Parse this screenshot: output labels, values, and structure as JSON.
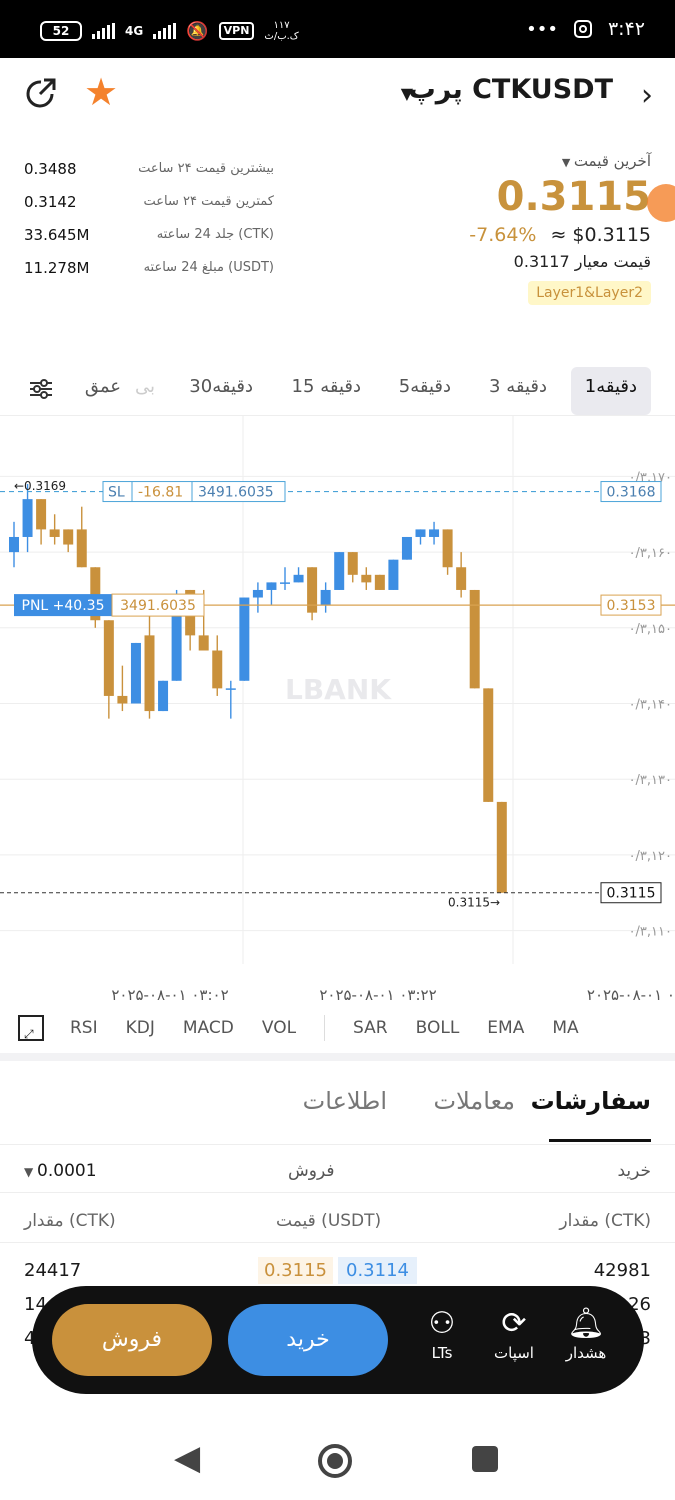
{
  "status_bar": {
    "battery": "52",
    "network": "4G",
    "vpn": "VPN",
    "data_rate_top": "۱۱۷",
    "data_rate_bottom": "ک.ب/ث",
    "dots": "•••",
    "time": "۳:۴۲"
  },
  "header": {
    "title": "پرپ CTKUSDT",
    "back_icon": "chevron-right-icon",
    "star_icon": "star-icon",
    "share_icon": "share-icon"
  },
  "stats": {
    "high_label": "بیشترین قیمت ۲۴ ساعت",
    "high_value": "0.3488",
    "low_label": "کمترین قیمت ۲۴ ساعت",
    "low_value": "0.3142",
    "vol_label": "جلد 24 ساعته (CTK)",
    "vol_value": "33.645M",
    "amount_label": "مبلغ 24 ساعته (USDT)",
    "amount_value": "11.278M"
  },
  "last_price": {
    "label": "آخرین قیمت",
    "value": "0.3115",
    "change": "-7.64%",
    "usd": "≈ $0.3115",
    "mark_label": "قیمت معیار",
    "mark_value": "0.3117",
    "tag": "Layer1&Layer2"
  },
  "timeframes": {
    "tf1": "1دقیقه",
    "tf3": "3 دقیقه",
    "tf5": "5دقیقه",
    "tf15": "15 دقیقه",
    "tf30": "30دقیقه",
    "faded": "بی",
    "depth": "عمق"
  },
  "chart_data": {
    "type": "candlestick",
    "symbol": "CTKUSDT",
    "watermark": "LBANK",
    "y_ticks": [
      "۰/۳,۱۷۰",
      "۰/۳,۱۶۰",
      "۰/۳,۱۵۰",
      "۰/۳,۱۴۰",
      "۰/۳,۱۳۰",
      "۰/۳,۱۲۰",
      "۰/۳,۱۱۰"
    ],
    "y_tick_values": [
      0.317,
      0.316,
      0.315,
      0.314,
      0.313,
      0.312,
      0.311
    ],
    "ylim": [
      0.3104,
      0.3176
    ],
    "x_ticks": [
      "۲۰۲۵-۰۸-۰۱ ۰۳:۰۲",
      "۲۰۲۵-۰۸-۰۱ ۰۳:۲۲",
      "۲۰۲۵-۰۸-۰۱ ۰"
    ],
    "high_marker": "0.3169",
    "low_marker": "0.3115→",
    "sl": {
      "label": "SL",
      "pnl": "-16.81",
      "qty": "3491.6035",
      "price": "0.3168",
      "value": 0.3168
    },
    "pnl": {
      "label": "PNL +40.35",
      "qty": "3491.6035",
      "price": "0.3153",
      "value": 0.3153
    },
    "last": {
      "price": "0.3115",
      "value": 0.3115
    },
    "up_color": "#3d8ee3",
    "down_color": "#c9913c",
    "candles": [
      {
        "o": 0.316,
        "h": 0.3164,
        "c": 0.3162,
        "l": 0.3158
      },
      {
        "o": 0.3162,
        "h": 0.3169,
        "c": 0.3167,
        "l": 0.316
      },
      {
        "o": 0.3167,
        "h": 0.3167,
        "c": 0.3163,
        "l": 0.3161
      },
      {
        "o": 0.3163,
        "h": 0.3165,
        "c": 0.3162,
        "l": 0.3161
      },
      {
        "o": 0.3163,
        "h": 0.3163,
        "c": 0.3161,
        "l": 0.316
      },
      {
        "o": 0.3163,
        "h": 0.3166,
        "c": 0.3158,
        "l": 0.3158
      },
      {
        "o": 0.3158,
        "h": 0.3158,
        "c": 0.3151,
        "l": 0.315
      },
      {
        "o": 0.3151,
        "h": 0.3151,
        "c": 0.3141,
        "l": 0.3138
      },
      {
        "o": 0.3141,
        "h": 0.3145,
        "c": 0.314,
        "l": 0.3139
      },
      {
        "o": 0.314,
        "h": 0.3148,
        "c": 0.3148,
        "l": 0.314
      },
      {
        "o": 0.3149,
        "h": 0.3154,
        "c": 0.3139,
        "l": 0.3138
      },
      {
        "o": 0.3139,
        "h": 0.3143,
        "c": 0.3143,
        "l": 0.3139
      },
      {
        "o": 0.3143,
        "h": 0.3155,
        "c": 0.3153,
        "l": 0.3143
      },
      {
        "o": 0.3155,
        "h": 0.3155,
        "c": 0.3149,
        "l": 0.3147
      },
      {
        "o": 0.3149,
        "h": 0.3155,
        "c": 0.3147,
        "l": 0.3147
      },
      {
        "o": 0.3147,
        "h": 0.3149,
        "c": 0.3142,
        "l": 0.3141
      },
      {
        "o": 0.3142,
        "h": 0.3143,
        "c": 0.3142,
        "l": 0.3138
      },
      {
        "o": 0.3143,
        "h": 0.3154,
        "c": 0.3154,
        "l": 0.3143
      },
      {
        "o": 0.3154,
        "h": 0.3156,
        "c": 0.3155,
        "l": 0.3152
      },
      {
        "o": 0.3155,
        "h": 0.3156,
        "c": 0.3156,
        "l": 0.3153
      },
      {
        "o": 0.3156,
        "h": 0.3158,
        "c": 0.3156,
        "l": 0.3155
      },
      {
        "o": 0.3156,
        "h": 0.3158,
        "c": 0.3157,
        "l": 0.3156
      },
      {
        "o": 0.3158,
        "h": 0.3158,
        "c": 0.3152,
        "l": 0.3151
      },
      {
        "o": 0.3153,
        "h": 0.3156,
        "c": 0.3155,
        "l": 0.3152
      },
      {
        "o": 0.3155,
        "h": 0.316,
        "c": 0.316,
        "l": 0.3155
      },
      {
        "o": 0.316,
        "h": 0.316,
        "c": 0.3157,
        "l": 0.3156
      },
      {
        "o": 0.3157,
        "h": 0.3158,
        "c": 0.3156,
        "l": 0.3155
      },
      {
        "o": 0.3157,
        "h": 0.3157,
        "c": 0.3155,
        "l": 0.3155
      },
      {
        "o": 0.3155,
        "h": 0.3159,
        "c": 0.3159,
        "l": 0.3155
      },
      {
        "o": 0.3159,
        "h": 0.3162,
        "c": 0.3162,
        "l": 0.3159
      },
      {
        "o": 0.3162,
        "h": 0.3163,
        "c": 0.3163,
        "l": 0.3161
      },
      {
        "o": 0.3162,
        "h": 0.3164,
        "c": 0.3163,
        "l": 0.3161
      },
      {
        "o": 0.3163,
        "h": 0.3163,
        "c": 0.3158,
        "l": 0.3157
      },
      {
        "o": 0.3158,
        "h": 0.316,
        "c": 0.3155,
        "l": 0.3154
      },
      {
        "o": 0.3155,
        "h": 0.3155,
        "c": 0.3142,
        "l": 0.3142
      },
      {
        "o": 0.3142,
        "h": 0.3142,
        "c": 0.3127,
        "l": 0.3127
      },
      {
        "o": 0.3127,
        "h": 0.3127,
        "c": 0.3115,
        "l": 0.3115
      }
    ]
  },
  "indicators": {
    "expand_icon": "expand-icon",
    "rsi": "RSI",
    "kdj": "KDJ",
    "macd": "MACD",
    "vol": "VOL",
    "sar": "SAR",
    "boll": "BOLL",
    "ema": "EMA",
    "ma": "MA"
  },
  "book_tabs": {
    "orders": "سفارشات",
    "trades": "معاملات",
    "info": "اطلاعات"
  },
  "book": {
    "buy": "خرید",
    "sell": "فروش",
    "precision": "0.0001",
    "col_qty_right": "مقدار (CTK)",
    "col_price": "قیمت (USDT)",
    "col_qty_left": "مقدار (CTK)",
    "row1_left": "24417",
    "row1_ask": "0.3115",
    "row1_bid": "0.3114",
    "row1_right": "42981",
    "row2_left": "14",
    "row2_right": "26",
    "row3_left": "4",
    "row3_right": "3"
  },
  "bottom_bar": {
    "sell": "فروش",
    "buy": "خرید",
    "lts": "LTs",
    "spot": "اسپات",
    "alert": "هشدار"
  },
  "nav": {
    "back_icon": "back-triangle-icon",
    "home_icon": "home-circle-icon",
    "recent_icon": "recent-square-icon"
  }
}
